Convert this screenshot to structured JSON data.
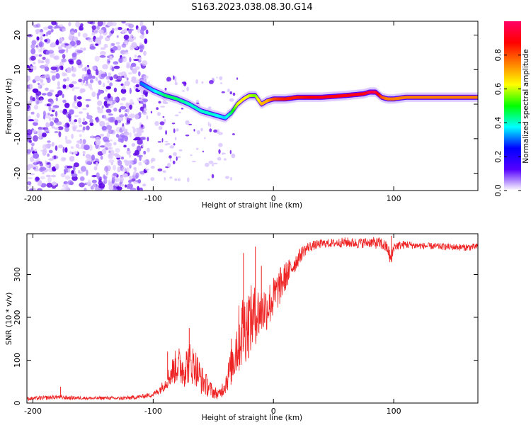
{
  "page": {
    "title": "S163.2023.038.08.30.G14"
  },
  "chart_data": [
    {
      "type": "heatmap",
      "xlabel": "Height of straight line (km)",
      "ylabel": "Frequency (Hz)",
      "xlim": [
        -205,
        170
      ],
      "ylim": [
        -25,
        24
      ],
      "x_ticks": [
        -200,
        -100,
        0,
        100
      ],
      "y_ticks": [
        -20,
        -10,
        0,
        10,
        20
      ],
      "grid": false,
      "colorbar": {
        "label": "Normalized spectral amplitude",
        "range": [
          0,
          1
        ],
        "ticks": [
          "0.0",
          "0.2",
          "0.4",
          "0.6",
          "0.8"
        ],
        "tick_values": [
          0.0,
          0.2,
          0.4,
          0.6,
          0.8
        ],
        "colormap": [
          "#ffffff",
          "#5500ff",
          "#0000ff",
          "#00ffff",
          "#00ff00",
          "#ffff00",
          "#ff8000",
          "#ff0000",
          "#ff0066"
        ]
      },
      "ridge": {
        "description_free": true,
        "x": [
          -110,
          -100,
          -90,
          -80,
          -70,
          -60,
          -50,
          -40,
          -35,
          -30,
          -25,
          -20,
          -15,
          -10,
          -5,
          0,
          10,
          20,
          40,
          60,
          75,
          80,
          85,
          90,
          95,
          100,
          110,
          130,
          150,
          170
        ],
        "frequency": [
          6,
          4,
          2.5,
          1.5,
          0,
          -2,
          -3,
          -4,
          -2.5,
          0,
          1.5,
          2.5,
          2.5,
          0,
          1,
          1.5,
          1.5,
          2,
          2,
          2.5,
          3,
          3.5,
          3.5,
          2,
          1.5,
          1.5,
          2,
          2,
          2,
          2
        ],
        "amplitude": [
          0.3,
          0.35,
          0.45,
          0.45,
          0.4,
          0.4,
          0.4,
          0.35,
          0.45,
          0.6,
          0.65,
          0.6,
          0.55,
          0.7,
          0.7,
          0.8,
          0.85,
          0.85,
          0.9,
          0.9,
          0.9,
          0.95,
          0.95,
          0.8,
          0.75,
          0.75,
          0.75,
          0.75,
          0.75,
          0.75
        ]
      }
    },
    {
      "type": "line",
      "xlabel": "Height of straight line (km)",
      "ylabel": "SNR (10 * v/v)",
      "xlim": [
        -205,
        170
      ],
      "ylim": [
        0,
        395
      ],
      "x_ticks": [
        -200,
        -100,
        0,
        100
      ],
      "y_ticks": [
        0,
        100,
        200,
        300
      ],
      "grid": false,
      "series": [
        {
          "color": "#ee2222",
          "x": [
            -205,
            -190,
            -180,
            -170,
            -160,
            -150,
            -140,
            -130,
            -120,
            -110,
            -100,
            -95,
            -90,
            -85,
            -80,
            -75,
            -70,
            -65,
            -60,
            -55,
            -50,
            -45,
            -40,
            -35,
            -30,
            -25,
            -20,
            -15,
            -10,
            -5,
            0,
            5,
            10,
            15,
            20,
            25,
            30,
            40,
            50,
            60,
            70,
            80,
            90,
            95,
            98,
            100,
            105,
            110,
            120,
            130,
            140,
            150,
            160,
            170
          ],
          "y": [
            10,
            12,
            14,
            12,
            12,
            11,
            12,
            11,
            12,
            15,
            20,
            30,
            45,
            70,
            90,
            80,
            95,
            85,
            55,
            40,
            25,
            20,
            45,
            85,
            140,
            175,
            190,
            205,
            215,
            225,
            245,
            270,
            295,
            315,
            335,
            355,
            365,
            372,
            373,
            375,
            373,
            375,
            372,
            360,
            330,
            365,
            368,
            370,
            367,
            366,
            365,
            364,
            363,
            365
          ],
          "band_halfwidth": [
            4,
            5,
            5,
            5,
            4,
            4,
            4,
            4,
            5,
            5,
            6,
            10,
            15,
            30,
            45,
            45,
            50,
            45,
            35,
            25,
            15,
            12,
            25,
            45,
            80,
            90,
            85,
            70,
            60,
            55,
            50,
            45,
            35,
            25,
            20,
            15,
            12,
            10,
            10,
            12,
            12,
            12,
            15,
            15,
            20,
            12,
            10,
            10,
            8,
            8,
            8,
            8,
            8,
            8
          ],
          "spikes": [
            {
              "x": -177,
              "y": 38
            },
            {
              "x": -88,
              "y": 120
            },
            {
              "x": -70,
              "y": 175
            },
            {
              "x": -35,
              "y": 150
            },
            {
              "x": -25,
              "y": 350
            },
            {
              "x": -15,
              "y": 365
            },
            {
              "x": -10,
              "y": 320
            },
            {
              "x": 98,
              "y": 390
            }
          ]
        }
      ]
    }
  ]
}
